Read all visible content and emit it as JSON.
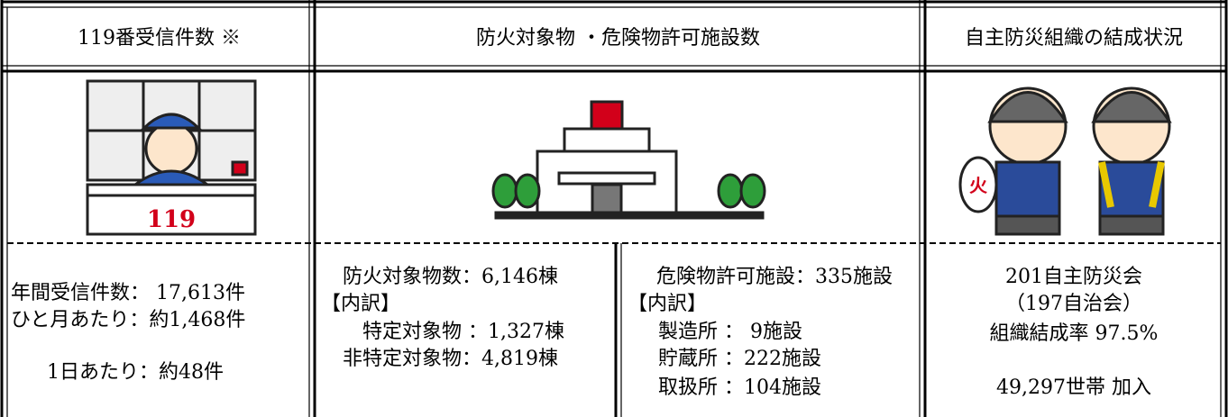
{
  "table": {
    "headers": [
      "119番受信件数 ※",
      "防火対象物 ・危険物許可施設数",
      "自主防災組織の結成状況"
    ],
    "cells": [
      {
        "lines": [
          "年間受信件数： 17,613件",
          "ひと月あたり：約1,468件",
          "1日あたり：約48件"
        ]
      },
      {
        "lines": [
          "防火対象物数：6,146棟",
          "【内訳】",
          "特定対象物 ：1,327棟",
          "非特定対象物：4,819棟"
        ]
      },
      {
        "lines": [
          "危険物許可施設：335施設",
          "【内訳】",
          "製造所 ： 9施設",
          "貯蔵所 ：222施設",
          "取扱所 ：104施設"
        ]
      },
      {
        "lines": [
          "201自主防災会",
          "（197自治会）",
          "組織結成率 97.5%",
          "49,297世帯 加入"
        ]
      }
    ]
  }
}
